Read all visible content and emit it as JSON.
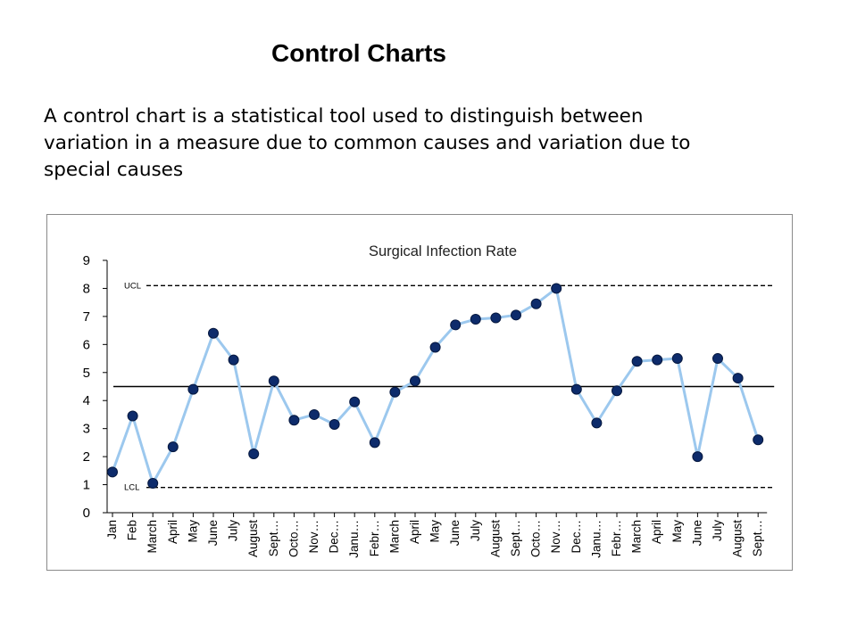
{
  "slide": {
    "title": "Control Charts",
    "body_lines": [
      "A control chart is a statistical tool used to distinguish between",
      "variation in a measure due to common causes and variation due to",
      "special causes"
    ]
  },
  "colors": {
    "line": "#9cc8ee",
    "marker": "#0d2b6b",
    "center_line": "#000000",
    "limit_lines": "#000000"
  },
  "chart_data": {
    "type": "line",
    "title": "Surgical Infection Rate",
    "xlabel": "",
    "ylabel": "",
    "ylim": [
      0,
      9
    ],
    "yticks": [
      0,
      1,
      2,
      3,
      4,
      5,
      6,
      7,
      8,
      9
    ],
    "grid": false,
    "categories": [
      "Jan",
      "Feb",
      "March",
      "April",
      "May",
      "June",
      "July",
      "August",
      "Sept…",
      "Octo…",
      "Nov…",
      "Dec…",
      "Janu…",
      "Febr…",
      "March",
      "April",
      "May",
      "June",
      "July",
      "August",
      "Sept…",
      "Octo…",
      "Nov…",
      "Dec…",
      "Janu…",
      "Febr…",
      "March",
      "April",
      "May",
      "June",
      "July",
      "August",
      "Sept…"
    ],
    "series": [
      {
        "values": [
          1.45,
          3.45,
          1.05,
          2.35,
          4.4,
          6.4,
          5.45,
          2.1,
          4.7,
          3.3,
          3.5,
          3.15,
          3.95,
          2.5,
          4.3,
          4.7,
          5.9,
          6.7,
          6.9,
          6.95,
          7.05,
          7.45,
          8.0,
          4.4,
          3.2,
          4.35,
          5.4,
          5.45,
          5.5,
          2.0,
          5.5,
          4.8,
          2.6
        ]
      }
    ],
    "center_line": 4.5,
    "ucl": {
      "label": "UCL",
      "value": 8.1
    },
    "lcl": {
      "label": "LCL",
      "value": 0.9
    }
  }
}
